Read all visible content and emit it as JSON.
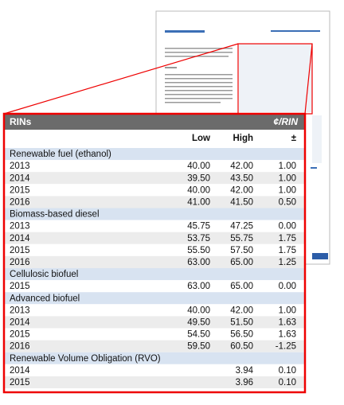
{
  "table": {
    "title": "RINs",
    "unit": "¢/RIN",
    "columns": [
      "Low",
      "High",
      "±"
    ],
    "sections": [
      {
        "name": "Renewable fuel (ethanol)",
        "rows": [
          {
            "label": "2013",
            "low": "40.00",
            "high": "42.00",
            "change": "1.00"
          },
          {
            "label": "2014",
            "low": "39.50",
            "high": "43.50",
            "change": "1.00"
          },
          {
            "label": "2015",
            "low": "40.00",
            "high": "42.00",
            "change": "1.00"
          },
          {
            "label": "2016",
            "low": "41.00",
            "high": "41.50",
            "change": "0.50"
          }
        ]
      },
      {
        "name": "Biomass-based diesel",
        "rows": [
          {
            "label": "2013",
            "low": "45.75",
            "high": "47.25",
            "change": "0.00"
          },
          {
            "label": "2014",
            "low": "53.75",
            "high": "55.75",
            "change": "1.75"
          },
          {
            "label": "2015",
            "low": "55.50",
            "high": "57.50",
            "change": "1.75"
          },
          {
            "label": "2016",
            "low": "63.00",
            "high": "65.00",
            "change": "1.25"
          }
        ]
      },
      {
        "name": "Cellulosic biofuel",
        "rows": [
          {
            "label": "2015",
            "low": "63.00",
            "high": "65.00",
            "change": "0.00"
          }
        ]
      },
      {
        "name": "Advanced biofuel",
        "rows": [
          {
            "label": "2013",
            "low": "40.00",
            "high": "42.00",
            "change": "1.00"
          },
          {
            "label": "2014",
            "low": "49.50",
            "high": "51.50",
            "change": "1.63"
          },
          {
            "label": "2015",
            "low": "54.50",
            "high": "56.50",
            "change": "1.63"
          },
          {
            "label": "2016",
            "low": "59.50",
            "high": "60.50",
            "change": "-1.25"
          }
        ]
      },
      {
        "name": "Renewable Volume Obligation (RVO)",
        "rows": [
          {
            "label": "2014",
            "high": "3.94",
            "change": "0.10"
          },
          {
            "label": "2015",
            "high": "3.96",
            "change": "0.10"
          }
        ]
      }
    ]
  }
}
